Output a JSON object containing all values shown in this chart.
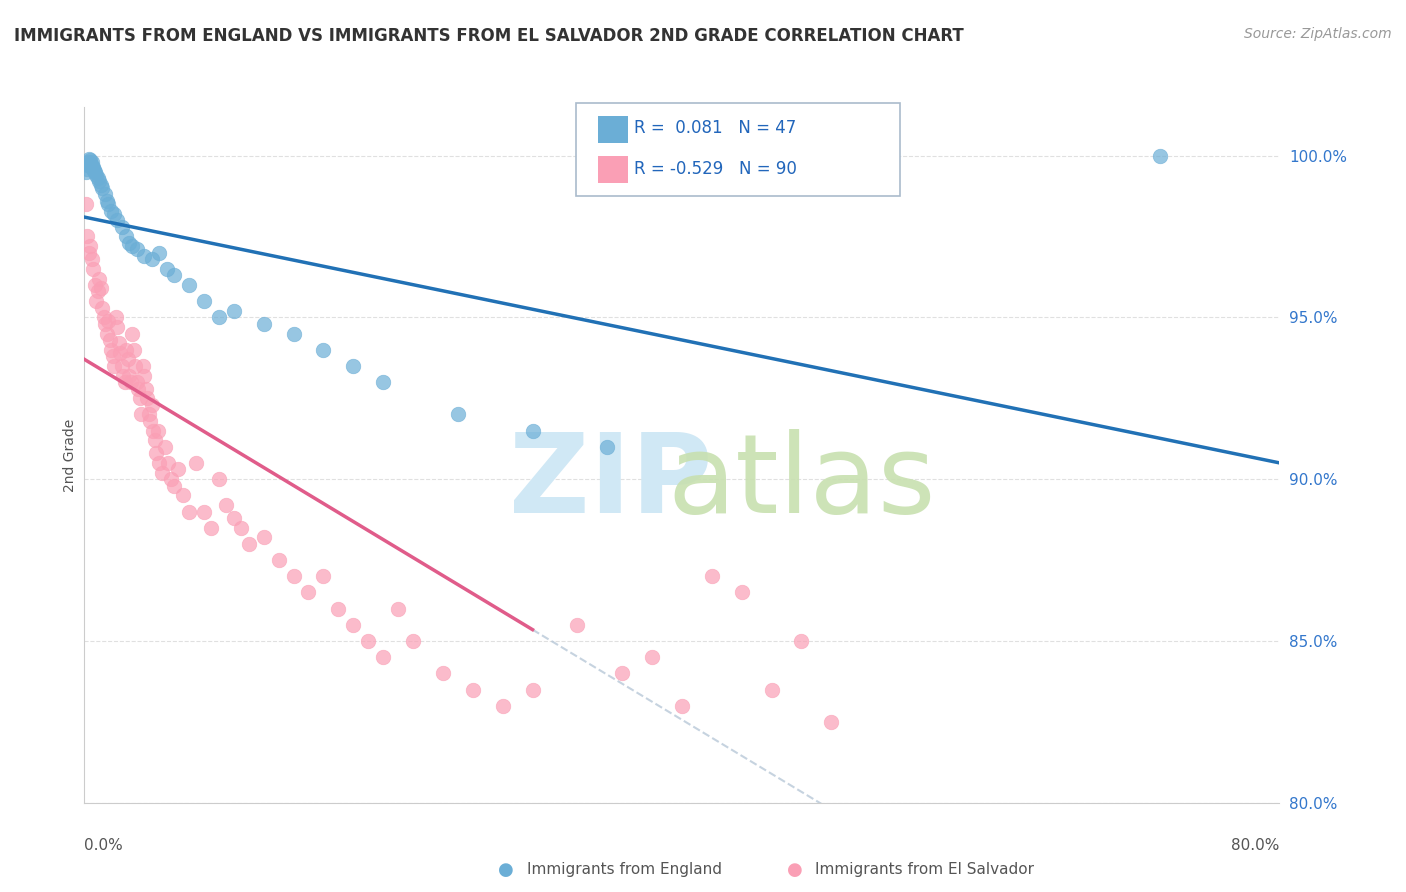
{
  "title": "IMMIGRANTS FROM ENGLAND VS IMMIGRANTS FROM EL SALVADOR 2ND GRADE CORRELATION CHART",
  "source": "Source: ZipAtlas.com",
  "ylabel": "2nd Grade",
  "xlim": [
    0.0,
    80.0
  ],
  "ylim": [
    80.0,
    101.5
  ],
  "yticks": [
    80.0,
    85.0,
    90.0,
    95.0,
    100.0
  ],
  "ytick_labels": [
    "80.0%",
    "85.0%",
    "90.0%",
    "95.0%",
    "100.0%"
  ],
  "england_R": 0.081,
  "england_N": 47,
  "salvador_R": -0.529,
  "salvador_N": 90,
  "england_color": "#6baed6",
  "salvador_color": "#fa9fb5",
  "england_line_color": "#2171b5",
  "salvador_line_color": "#e05c8a",
  "watermark_color": "#d0e8f5",
  "watermark_color2": "#c8e0b0",
  "england_x": [
    0.1,
    0.15,
    0.2,
    0.25,
    0.3,
    0.35,
    0.4,
    0.45,
    0.5,
    0.55,
    0.6,
    0.65,
    0.7,
    0.8,
    0.9,
    1.0,
    1.1,
    1.2,
    1.4,
    1.5,
    1.6,
    1.8,
    2.0,
    2.2,
    2.5,
    2.8,
    3.0,
    3.2,
    3.5,
    4.0,
    4.5,
    5.0,
    5.5,
    6.0,
    7.0,
    8.0,
    9.0,
    10.0,
    12.0,
    14.0,
    16.0,
    18.0,
    20.0,
    25.0,
    30.0,
    35.0,
    72.0
  ],
  "england_y": [
    99.5,
    99.7,
    99.6,
    99.8,
    99.9,
    99.85,
    99.7,
    99.75,
    99.8,
    99.6,
    99.65,
    99.55,
    99.5,
    99.4,
    99.3,
    99.2,
    99.1,
    99.0,
    98.8,
    98.6,
    98.5,
    98.3,
    98.2,
    98.0,
    97.8,
    97.5,
    97.3,
    97.2,
    97.1,
    96.9,
    96.8,
    97.0,
    96.5,
    96.3,
    96.0,
    95.5,
    95.0,
    95.2,
    94.8,
    94.5,
    94.0,
    93.5,
    93.0,
    92.0,
    91.5,
    91.0,
    100.0
  ],
  "salvador_x": [
    0.1,
    0.2,
    0.3,
    0.4,
    0.5,
    0.6,
    0.7,
    0.8,
    0.9,
    1.0,
    1.1,
    1.2,
    1.3,
    1.4,
    1.5,
    1.6,
    1.7,
    1.8,
    1.9,
    2.0,
    2.1,
    2.2,
    2.3,
    2.4,
    2.5,
    2.6,
    2.7,
    2.8,
    2.9,
    3.0,
    3.1,
    3.2,
    3.3,
    3.4,
    3.5,
    3.6,
    3.7,
    3.8,
    3.9,
    4.0,
    4.1,
    4.2,
    4.3,
    4.4,
    4.5,
    4.6,
    4.7,
    4.8,
    4.9,
    5.0,
    5.2,
    5.4,
    5.6,
    5.8,
    6.0,
    6.3,
    6.6,
    7.0,
    7.5,
    8.0,
    8.5,
    9.0,
    9.5,
    10.0,
    10.5,
    11.0,
    12.0,
    13.0,
    14.0,
    15.0,
    16.0,
    17.0,
    18.0,
    19.0,
    20.0,
    21.0,
    22.0,
    24.0,
    26.0,
    28.0,
    30.0,
    33.0,
    36.0,
    38.0,
    40.0,
    42.0,
    44.0,
    46.0,
    48.0,
    50.0
  ],
  "salvador_y": [
    98.5,
    97.5,
    97.0,
    97.2,
    96.8,
    96.5,
    96.0,
    95.5,
    95.8,
    96.2,
    95.9,
    95.3,
    95.0,
    94.8,
    94.5,
    94.9,
    94.3,
    94.0,
    93.8,
    93.5,
    95.0,
    94.7,
    94.2,
    93.9,
    93.5,
    93.2,
    93.0,
    94.0,
    93.7,
    93.2,
    93.0,
    94.5,
    94.0,
    93.5,
    93.0,
    92.8,
    92.5,
    92.0,
    93.5,
    93.2,
    92.8,
    92.5,
    92.0,
    91.8,
    92.3,
    91.5,
    91.2,
    90.8,
    91.5,
    90.5,
    90.2,
    91.0,
    90.5,
    90.0,
    89.8,
    90.3,
    89.5,
    89.0,
    90.5,
    89.0,
    88.5,
    90.0,
    89.2,
    88.8,
    88.5,
    88.0,
    88.2,
    87.5,
    87.0,
    86.5,
    87.0,
    86.0,
    85.5,
    85.0,
    84.5,
    86.0,
    85.0,
    84.0,
    83.5,
    83.0,
    83.5,
    85.5,
    84.0,
    84.5,
    83.0,
    87.0,
    86.5,
    83.5,
    85.0,
    82.5
  ]
}
